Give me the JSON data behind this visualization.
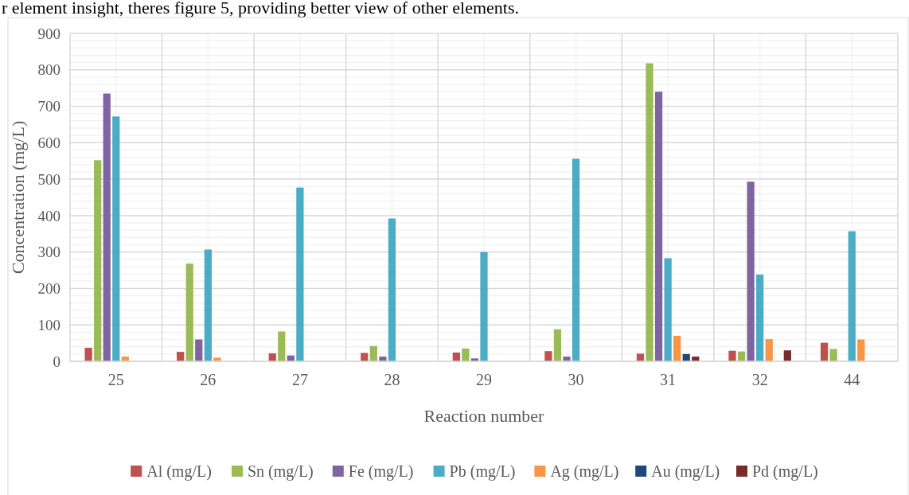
{
  "chart_data": {
    "type": "bar",
    "ylabel": "Concentration (mg/L)",
    "xlabel": "Reaction number",
    "annotations": [
      "r element insight, theres figure 5, providing better view of other elements."
    ],
    "categories": [
      "25",
      "26",
      "27",
      "28",
      "29",
      "30",
      "31",
      "32",
      "44"
    ],
    "series": [
      {
        "name": "Al (mg/L)",
        "color": "#c0504d",
        "values": [
          37,
          26,
          22,
          23,
          24,
          28,
          21,
          29,
          51
        ]
      },
      {
        "name": "Sn (mg/L)",
        "color": "#9bbb59",
        "values": [
          552,
          268,
          82,
          42,
          35,
          88,
          818,
          27,
          34
        ]
      },
      {
        "name": "Fe (mg/L)",
        "color": "#8064a2",
        "values": [
          735,
          60,
          16,
          13,
          8,
          13,
          740,
          493,
          null
        ]
      },
      {
        "name": "Pb (mg/L)",
        "color": "#4bacc6",
        "values": [
          672,
          307,
          477,
          392,
          300,
          556,
          283,
          238,
          357
        ]
      },
      {
        "name": "Ag (mg/L)",
        "color": "#f79646",
        "values": [
          13,
          10,
          null,
          null,
          null,
          null,
          70,
          61,
          60
        ]
      },
      {
        "name": "Au (mg/L)",
        "color": "#1f497d",
        "values": [
          null,
          null,
          null,
          null,
          null,
          null,
          20,
          null,
          null
        ]
      },
      {
        "name": "Pd (mg/L)",
        "color": "#772c2a",
        "values": [
          null,
          null,
          null,
          null,
          null,
          null,
          13,
          30,
          null
        ]
      }
    ],
    "ylim": [
      0,
      900
    ],
    "yticks": [
      0,
      100,
      200,
      300,
      400,
      500,
      600,
      700,
      800,
      900
    ],
    "grid": true,
    "legend": "bottom"
  }
}
